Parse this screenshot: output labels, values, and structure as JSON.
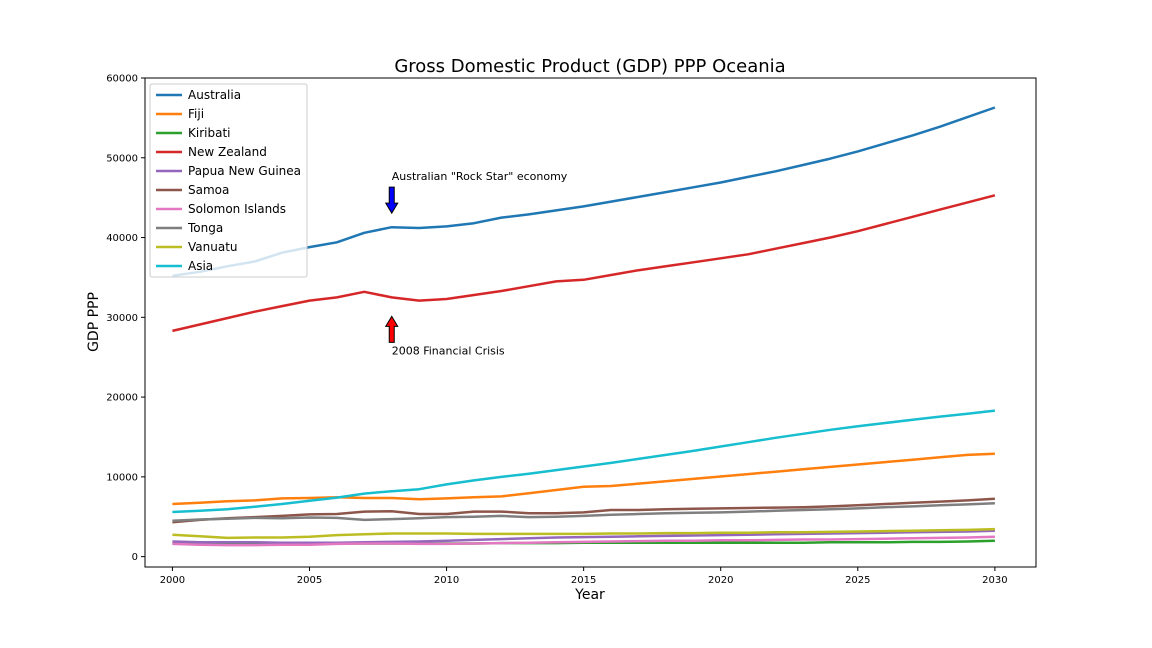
{
  "chart_data": {
    "type": "line",
    "title": "Gross Domestic Product (GDP) PPP Oceania",
    "xlabel": "Year",
    "ylabel": "GDP PPP",
    "xlim": [
      1999,
      2031.5
    ],
    "ylim": [
      -1300,
      60000
    ],
    "xticks": [
      2000,
      2005,
      2010,
      2015,
      2020,
      2025,
      2030
    ],
    "yticks": [
      0,
      10000,
      20000,
      30000,
      40000,
      50000,
      60000
    ],
    "grid": false,
    "legend_position": "top-left",
    "x": [
      2000,
      2001,
      2002,
      2003,
      2004,
      2005,
      2006,
      2007,
      2008,
      2009,
      2010,
      2011,
      2012,
      2013,
      2014,
      2015,
      2016,
      2017,
      2018,
      2019,
      2020,
      2021,
      2022,
      2023,
      2024,
      2025,
      2026,
      2027,
      2028,
      2029,
      2030
    ],
    "series": [
      {
        "name": "Australia",
        "color": "#1f77b4",
        "values": [
          35200,
          35700,
          36400,
          37000,
          38100,
          38800,
          39400,
          40600,
          41300,
          41200,
          41400,
          41800,
          42500,
          42900,
          43400,
          43900,
          44500,
          45100,
          45700,
          46300,
          46900,
          47600,
          48300,
          49100,
          49900,
          50800,
          51800,
          52800,
          53900,
          55100,
          56300
        ]
      },
      {
        "name": "Fiji",
        "color": "#ff7f0e",
        "values": [
          6600,
          6750,
          6950,
          7050,
          7300,
          7350,
          7450,
          7350,
          7350,
          7200,
          7300,
          7450,
          7550,
          7950,
          8350,
          8750,
          8850,
          9150,
          9450,
          9750,
          10050,
          10350,
          10650,
          10950,
          11250,
          11550,
          11850,
          12150,
          12450,
          12750,
          12900
        ]
      },
      {
        "name": "Kiribati",
        "color": "#2ca02c",
        "values": [
          1650,
          1650,
          1650,
          1650,
          1650,
          1650,
          1650,
          1650,
          1650,
          1650,
          1650,
          1650,
          1700,
          1700,
          1700,
          1750,
          1750,
          1750,
          1750,
          1750,
          1750,
          1750,
          1750,
          1750,
          1800,
          1800,
          1800,
          1850,
          1850,
          1900,
          2000
        ]
      },
      {
        "name": "New Zealand",
        "color": "#d62728",
        "values": [
          28300,
          29100,
          29900,
          30700,
          31400,
          32100,
          32500,
          33200,
          32500,
          32100,
          32300,
          32800,
          33300,
          33900,
          34500,
          34700,
          35300,
          35900,
          36400,
          36900,
          37400,
          37900,
          38600,
          39300,
          40000,
          40800,
          41700,
          42600,
          43500,
          44400,
          45300
        ]
      },
      {
        "name": "Papua New Guinea",
        "color": "#9467bd",
        "values": [
          1900,
          1800,
          1800,
          1800,
          1750,
          1750,
          1750,
          1800,
          1850,
          1900,
          2000,
          2100,
          2200,
          2300,
          2400,
          2450,
          2500,
          2550,
          2600,
          2650,
          2700,
          2750,
          2800,
          2850,
          2900,
          2950,
          3000,
          3050,
          3100,
          3150,
          3250
        ]
      },
      {
        "name": "Samoa",
        "color": "#8c564b",
        "values": [
          4300,
          4600,
          4800,
          4950,
          5100,
          5300,
          5350,
          5650,
          5700,
          5350,
          5350,
          5650,
          5650,
          5450,
          5450,
          5550,
          5850,
          5850,
          5950,
          6000,
          6050,
          6100,
          6150,
          6200,
          6300,
          6450,
          6600,
          6750,
          6900,
          7050,
          7250
        ]
      },
      {
        "name": "Solomon Islands",
        "color": "#e377c2",
        "values": [
          1600,
          1500,
          1450,
          1450,
          1500,
          1500,
          1600,
          1650,
          1650,
          1600,
          1600,
          1650,
          1700,
          1750,
          1800,
          1850,
          1900,
          1950,
          2000,
          2000,
          2050,
          2050,
          2100,
          2150,
          2150,
          2200,
          2250,
          2300,
          2350,
          2400,
          2500
        ]
      },
      {
        "name": "Tonga",
        "color": "#7f7f7f",
        "values": [
          4500,
          4650,
          4750,
          4850,
          4800,
          4900,
          4850,
          4600,
          4700,
          4800,
          4950,
          5000,
          5100,
          4950,
          5000,
          5100,
          5250,
          5350,
          5450,
          5500,
          5550,
          5650,
          5750,
          5850,
          5950,
          6050,
          6200,
          6300,
          6450,
          6550,
          6700
        ]
      },
      {
        "name": "Vanuatu",
        "color": "#bcbd22",
        "values": [
          2750,
          2550,
          2350,
          2400,
          2400,
          2500,
          2700,
          2800,
          2900,
          2900,
          2900,
          2850,
          2850,
          2850,
          2850,
          2850,
          2900,
          2900,
          2950,
          2950,
          3000,
          3000,
          3050,
          3050,
          3100,
          3150,
          3200,
          3250,
          3300,
          3350,
          3450
        ]
      },
      {
        "name": "Asia",
        "color": "#17becf",
        "values": [
          5600,
          5750,
          5950,
          6250,
          6600,
          7000,
          7400,
          7900,
          8200,
          8450,
          9050,
          9550,
          10000,
          10400,
          10850,
          11300,
          11750,
          12250,
          12750,
          13250,
          13800,
          14350,
          14900,
          15400,
          15900,
          16350,
          16750,
          17150,
          17550,
          17900,
          18300
        ]
      }
    ],
    "annotations": [
      {
        "text": "Australian \"Rock Star\" economy",
        "x": 2008,
        "y": 41300,
        "direction": "down",
        "color": "#0000ff"
      },
      {
        "text": "2008 Financial Crisis",
        "x": 2008,
        "y": 32500,
        "direction": "up",
        "color": "#ff0000"
      }
    ]
  }
}
